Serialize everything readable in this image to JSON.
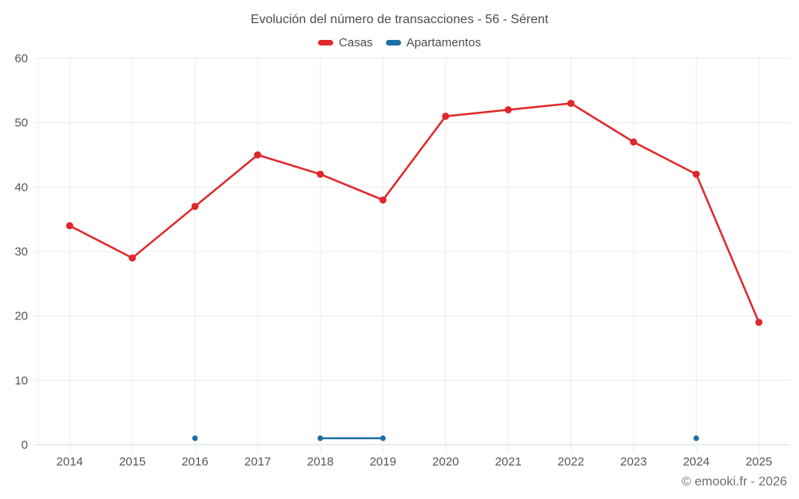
{
  "chart_data": {
    "type": "line",
    "title": "Evolución del número de transacciones - 56 - Sérent",
    "categories": [
      "2014",
      "2015",
      "2016",
      "2017",
      "2018",
      "2019",
      "2020",
      "2021",
      "2022",
      "2023",
      "2024",
      "2025"
    ],
    "series": [
      {
        "name": "Casas",
        "color": "#e0282c",
        "values": [
          34,
          29,
          37,
          45,
          42,
          38,
          51,
          52,
          53,
          47,
          42,
          19
        ]
      },
      {
        "name": "Apartamentos",
        "color": "#1c6ea4",
        "values": [
          null,
          null,
          1,
          null,
          1,
          1,
          null,
          null,
          null,
          null,
          1,
          null
        ]
      }
    ],
    "ylim": [
      0,
      60
    ],
    "yticks": [
      0,
      10,
      20,
      30,
      40,
      50,
      60
    ],
    "xlabel": "",
    "ylabel": "",
    "grid": true,
    "legend_position": "top",
    "grid_color": "#ececec",
    "axis_color": "#d8d8d8"
  },
  "footer": {
    "copyright": "© emooki.fr - 2026"
  }
}
